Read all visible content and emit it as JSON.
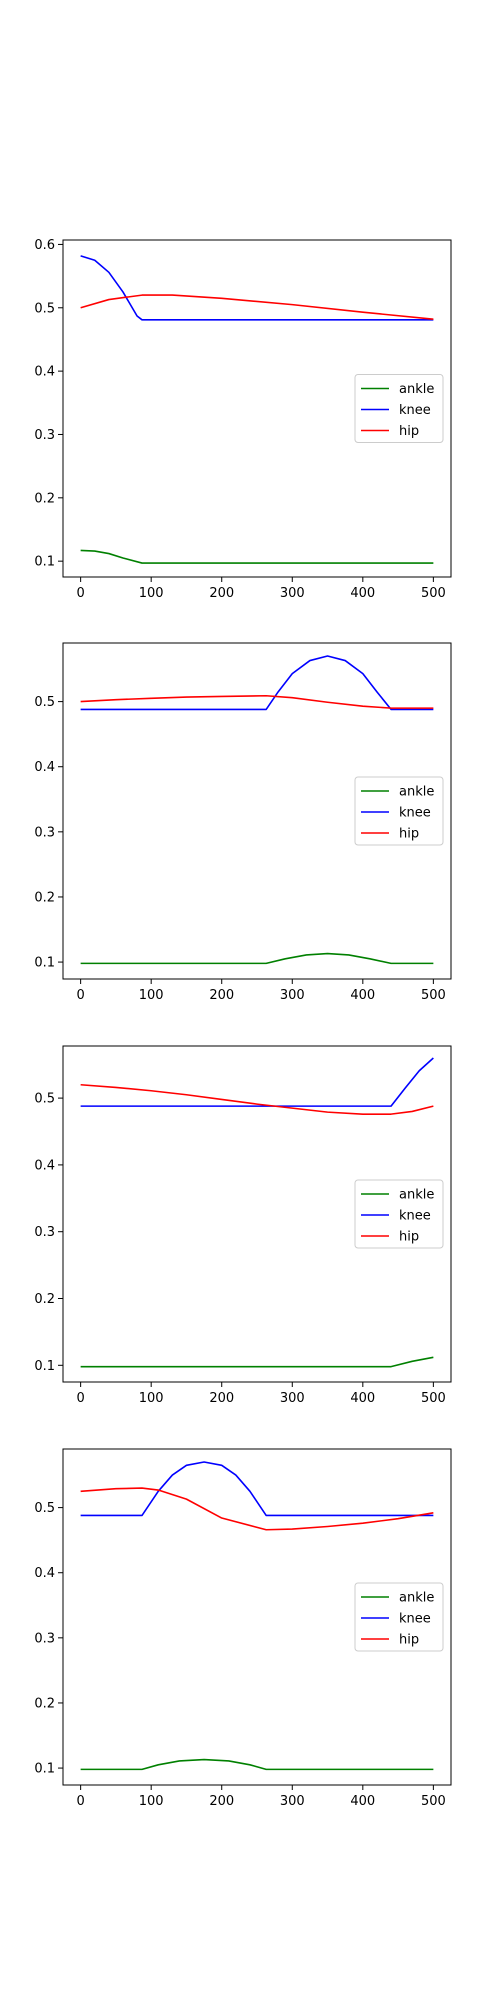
{
  "figure": {
    "colors": {
      "ankle": "#008000",
      "knee": "#0000ff",
      "hip": "#ff0000",
      "axes": "#000000",
      "background": "#ffffff"
    }
  },
  "chart_data": [
    {
      "type": "line",
      "title": "",
      "xlabel": "",
      "ylabel": "",
      "xlim": [
        -25,
        525
      ],
      "ylim": [
        0.075,
        0.607
      ],
      "xticks": [
        0,
        100,
        200,
        300,
        400,
        500
      ],
      "xtick_labels": [
        "0",
        "100",
        "200",
        "300",
        "400",
        "500"
      ],
      "yticks": [
        0.1,
        0.2,
        0.3,
        0.4,
        0.5,
        0.6
      ],
      "ytick_labels": [
        "0.1",
        "0.2",
        "0.3",
        "0.4",
        "0.5",
        "0.6"
      ],
      "grid": false,
      "legend": {
        "position": "center-right",
        "entries": [
          "ankle",
          "knee",
          "hip"
        ]
      },
      "series": [
        {
          "name": "ankle",
          "color": "#008000",
          "x": [
            0,
            20,
            40,
            60,
            87,
            150,
            250,
            350,
            450,
            500
          ],
          "y": [
            0.117,
            0.116,
            0.112,
            0.105,
            0.097,
            0.097,
            0.097,
            0.097,
            0.097,
            0.097
          ]
        },
        {
          "name": "knee",
          "color": "#0000ff",
          "x": [
            0,
            20,
            40,
            60,
            80,
            87,
            150,
            250,
            350,
            450,
            500
          ],
          "y": [
            0.582,
            0.575,
            0.556,
            0.525,
            0.487,
            0.481,
            0.481,
            0.481,
            0.481,
            0.481,
            0.481
          ]
        },
        {
          "name": "hip",
          "color": "#ff0000",
          "x": [
            0,
            40,
            87,
            130,
            200,
            300,
            400,
            500
          ],
          "y": [
            0.5,
            0.513,
            0.52,
            0.52,
            0.515,
            0.505,
            0.493,
            0.482
          ]
        }
      ]
    },
    {
      "type": "line",
      "title": "",
      "xlabel": "",
      "ylabel": "",
      "xlim": [
        -25,
        525
      ],
      "ylim": [
        0.074,
        0.59
      ],
      "xticks": [
        0,
        100,
        200,
        300,
        400,
        500
      ],
      "xtick_labels": [
        "0",
        "100",
        "200",
        "300",
        "400",
        "500"
      ],
      "yticks": [
        0.1,
        0.2,
        0.3,
        0.4,
        0.5
      ],
      "ytick_labels": [
        "0.1",
        "0.2",
        "0.3",
        "0.4",
        "0.5"
      ],
      "grid": false,
      "legend": {
        "position": "center-right",
        "entries": [
          "ankle",
          "knee",
          "hip"
        ]
      },
      "series": [
        {
          "name": "ankle",
          "color": "#008000",
          "x": [
            0,
            100,
            200,
            263,
            290,
            320,
            350,
            380,
            410,
            440,
            470,
            500
          ],
          "y": [
            0.098,
            0.098,
            0.098,
            0.098,
            0.105,
            0.111,
            0.113,
            0.111,
            0.105,
            0.098,
            0.098,
            0.098
          ]
        },
        {
          "name": "knee",
          "color": "#0000ff",
          "x": [
            0,
            100,
            200,
            263,
            280,
            300,
            325,
            350,
            375,
            400,
            420,
            440,
            470,
            500
          ],
          "y": [
            0.488,
            0.488,
            0.488,
            0.488,
            0.515,
            0.543,
            0.563,
            0.57,
            0.563,
            0.543,
            0.515,
            0.488,
            0.488,
            0.488
          ]
        },
        {
          "name": "hip",
          "color": "#ff0000",
          "x": [
            0,
            50,
            100,
            150,
            200,
            263,
            300,
            350,
            400,
            440,
            470,
            500
          ],
          "y": [
            0.5,
            0.503,
            0.505,
            0.507,
            0.508,
            0.509,
            0.506,
            0.499,
            0.493,
            0.49,
            0.49,
            0.49
          ]
        }
      ]
    },
    {
      "type": "line",
      "title": "",
      "xlabel": "",
      "ylabel": "",
      "xlim": [
        -25,
        525
      ],
      "ylim": [
        0.075,
        0.578
      ],
      "xticks": [
        0,
        100,
        200,
        300,
        400,
        500
      ],
      "xtick_labels": [
        "0",
        "100",
        "200",
        "300",
        "400",
        "500"
      ],
      "yticks": [
        0.1,
        0.2,
        0.3,
        0.4,
        0.5
      ],
      "ytick_labels": [
        "0.1",
        "0.2",
        "0.3",
        "0.4",
        "0.5"
      ],
      "grid": false,
      "legend": {
        "position": "center-right",
        "entries": [
          "ankle",
          "knee",
          "hip"
        ]
      },
      "series": [
        {
          "name": "ankle",
          "color": "#008000",
          "x": [
            0,
            100,
            200,
            300,
            400,
            440,
            470,
            500
          ],
          "y": [
            0.098,
            0.098,
            0.098,
            0.098,
            0.098,
            0.098,
            0.106,
            0.112
          ]
        },
        {
          "name": "knee",
          "color": "#0000ff",
          "x": [
            0,
            100,
            200,
            300,
            400,
            440,
            460,
            480,
            500
          ],
          "y": [
            0.488,
            0.488,
            0.488,
            0.488,
            0.488,
            0.488,
            0.515,
            0.541,
            0.56
          ]
        },
        {
          "name": "hip",
          "color": "#ff0000",
          "x": [
            0,
            50,
            100,
            150,
            200,
            250,
            300,
            350,
            400,
            440,
            470,
            500
          ],
          "y": [
            0.52,
            0.516,
            0.511,
            0.505,
            0.498,
            0.491,
            0.485,
            0.479,
            0.476,
            0.476,
            0.48,
            0.488
          ]
        }
      ]
    },
    {
      "type": "line",
      "title": "",
      "xlabel": "",
      "ylabel": "",
      "xlim": [
        -25,
        525
      ],
      "ylim": [
        0.074,
        0.59
      ],
      "xticks": [
        0,
        100,
        200,
        300,
        400,
        500
      ],
      "xtick_labels": [
        "0",
        "100",
        "200",
        "300",
        "400",
        "500"
      ],
      "yticks": [
        0.1,
        0.2,
        0.3,
        0.4,
        0.5
      ],
      "ytick_labels": [
        "0.1",
        "0.2",
        "0.3",
        "0.4",
        "0.5"
      ],
      "grid": false,
      "legend": {
        "position": "center-right",
        "entries": [
          "ankle",
          "knee",
          "hip"
        ]
      },
      "series": [
        {
          "name": "ankle",
          "color": "#008000",
          "x": [
            0,
            50,
            87,
            110,
            140,
            175,
            210,
            240,
            263,
            300,
            400,
            500
          ],
          "y": [
            0.098,
            0.098,
            0.098,
            0.105,
            0.111,
            0.113,
            0.111,
            0.105,
            0.098,
            0.098,
            0.098,
            0.098
          ]
        },
        {
          "name": "knee",
          "color": "#0000ff",
          "x": [
            0,
            50,
            87,
            110,
            130,
            150,
            175,
            200,
            220,
            240,
            263,
            300,
            400,
            500
          ],
          "y": [
            0.488,
            0.488,
            0.488,
            0.525,
            0.55,
            0.565,
            0.57,
            0.565,
            0.55,
            0.525,
            0.488,
            0.488,
            0.488,
            0.488
          ]
        },
        {
          "name": "hip",
          "color": "#ff0000",
          "x": [
            0,
            50,
            87,
            110,
            150,
            200,
            263,
            300,
            350,
            400,
            450,
            500
          ],
          "y": [
            0.525,
            0.529,
            0.53,
            0.527,
            0.513,
            0.484,
            0.466,
            0.467,
            0.471,
            0.476,
            0.483,
            0.492
          ]
        }
      ]
    }
  ]
}
